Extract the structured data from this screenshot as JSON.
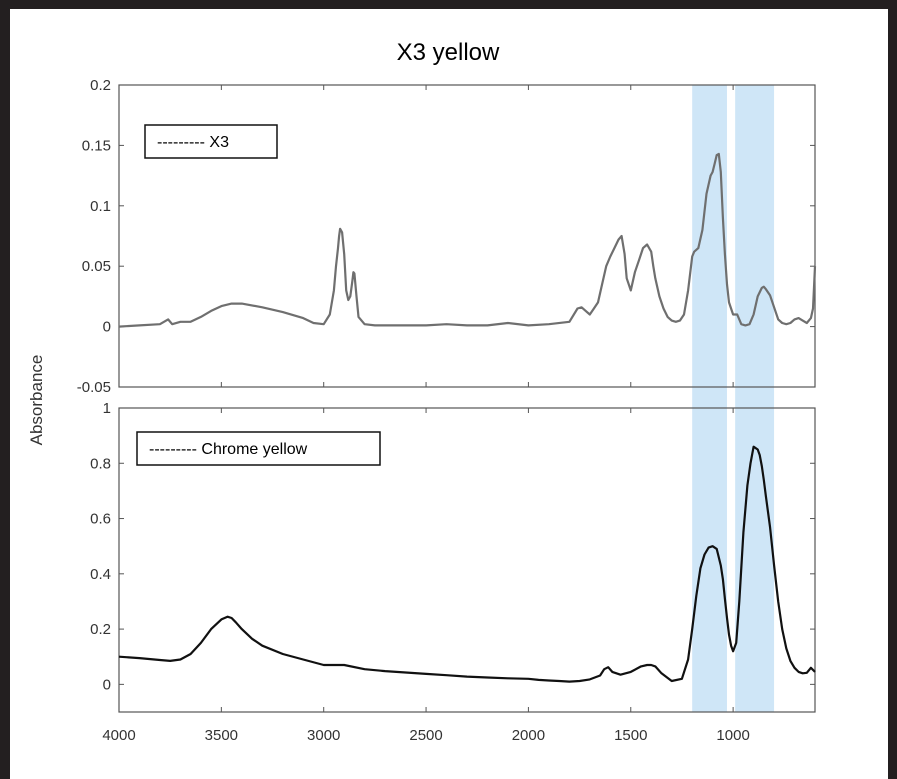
{
  "chart_data": {
    "title": "X3 yellow",
    "ylabel": "Absorbance",
    "xlabel": "",
    "x_ticks": [
      "4000",
      "3500",
      "3000",
      "2500",
      "2000",
      "1500",
      "1000"
    ],
    "xlim": [
      4000,
      600
    ],
    "highlight_bands": [
      [
        1200,
        1030
      ],
      [
        990,
        800
      ]
    ],
    "highlight_color": "#cfe6f7",
    "panels": [
      {
        "type": "line",
        "legend": "--------- X3",
        "legend_position": "top-left",
        "line_color": "#6f6f6f",
        "ylim": [
          -0.05,
          0.2
        ],
        "y_ticks": [
          "0.2",
          "0.15",
          "0.1",
          "0.05",
          "0",
          "-0.05"
        ],
        "series": [
          {
            "x": [
              4000,
              3900,
              3800,
              3760,
              3740,
              3700,
              3650,
              3600,
              3550,
              3500,
              3450,
              3400,
              3300,
              3200,
              3100,
              3050,
              3000,
              2970,
              2950,
              2940,
              2930,
              2925,
              2920,
              2910,
              2900,
              2890,
              2880,
              2870,
              2860,
              2855,
              2850,
              2840,
              2830,
              2800,
              2750,
              2700,
              2600,
              2500,
              2400,
              2300,
              2200,
              2100,
              2000,
              1900,
              1800,
              1760,
              1740,
              1720,
              1700,
              1680,
              1660,
              1640,
              1620,
              1600,
              1580,
              1560,
              1545,
              1530,
              1520,
              1500,
              1480,
              1460,
              1440,
              1420,
              1400,
              1390,
              1380,
              1360,
              1340,
              1320,
              1300,
              1280,
              1260,
              1240,
              1220,
              1200,
              1190,
              1170,
              1150,
              1130,
              1110,
              1100,
              1090,
              1080,
              1070,
              1060,
              1050,
              1040,
              1030,
              1020,
              1000,
              980,
              960,
              940,
              920,
              900,
              880,
              860,
              850,
              840,
              820,
              800,
              780,
              760,
              740,
              720,
              700,
              680,
              660,
              640,
              620,
              610,
              600
            ],
            "y": [
              0.0,
              0.001,
              0.002,
              0.006,
              0.002,
              0.004,
              0.004,
              0.008,
              0.013,
              0.017,
              0.019,
              0.019,
              0.016,
              0.012,
              0.007,
              0.003,
              0.002,
              0.01,
              0.03,
              0.05,
              0.065,
              0.075,
              0.081,
              0.078,
              0.06,
              0.03,
              0.022,
              0.025,
              0.038,
              0.045,
              0.044,
              0.025,
              0.008,
              0.002,
              0.001,
              0.001,
              0.001,
              0.001,
              0.002,
              0.001,
              0.001,
              0.003,
              0.001,
              0.002,
              0.004,
              0.015,
              0.016,
              0.013,
              0.01,
              0.015,
              0.02,
              0.035,
              0.05,
              0.058,
              0.065,
              0.072,
              0.075,
              0.06,
              0.04,
              0.03,
              0.045,
              0.055,
              0.065,
              0.068,
              0.062,
              0.05,
              0.04,
              0.025,
              0.015,
              0.008,
              0.005,
              0.004,
              0.005,
              0.01,
              0.03,
              0.058,
              0.062,
              0.065,
              0.08,
              0.11,
              0.125,
              0.128,
              0.135,
              0.142,
              0.143,
              0.128,
              0.09,
              0.06,
              0.035,
              0.02,
              0.01,
              0.01,
              0.002,
              0.001,
              0.002,
              0.01,
              0.025,
              0.032,
              0.033,
              0.031,
              0.026,
              0.016,
              0.006,
              0.003,
              0.002,
              0.003,
              0.006,
              0.007,
              0.005,
              0.003,
              0.007,
              0.015,
              0.05
            ]
          }
        ]
      },
      {
        "type": "line",
        "legend": "--------- Chrome yellow",
        "legend_position": "top-left",
        "line_color": "#111111",
        "ylim": [
          -0.1,
          1.0
        ],
        "y_ticks": [
          "1",
          "0.8",
          "0.6",
          "0.4",
          "0.2",
          "0"
        ],
        "series": [
          {
            "x": [
              4000,
              3900,
              3800,
              3750,
              3700,
              3650,
              3600,
              3550,
              3500,
              3470,
              3450,
              3430,
              3400,
              3350,
              3300,
              3200,
              3100,
              3000,
              2900,
              2800,
              2700,
              2600,
              2500,
              2400,
              2300,
              2200,
              2100,
              2000,
              1950,
              1900,
              1850,
              1800,
              1750,
              1700,
              1650,
              1630,
              1610,
              1590,
              1570,
              1550,
              1500,
              1450,
              1420,
              1400,
              1380,
              1350,
              1300,
              1250,
              1220,
              1200,
              1180,
              1160,
              1140,
              1120,
              1100,
              1080,
              1060,
              1050,
              1040,
              1030,
              1020,
              1010,
              1000,
              985,
              970,
              950,
              930,
              915,
              900,
              880,
              870,
              860,
              850,
              840,
              820,
              800,
              780,
              760,
              740,
              720,
              700,
              680,
              660,
              640,
              620,
              600
            ],
            "y": [
              0.1,
              0.095,
              0.088,
              0.085,
              0.09,
              0.11,
              0.15,
              0.2,
              0.235,
              0.245,
              0.24,
              0.225,
              0.2,
              0.165,
              0.14,
              0.11,
              0.09,
              0.07,
              0.07,
              0.055,
              0.048,
              0.043,
              0.038,
              0.033,
              0.028,
              0.025,
              0.022,
              0.02,
              0.016,
              0.014,
              0.012,
              0.01,
              0.012,
              0.018,
              0.032,
              0.055,
              0.062,
              0.045,
              0.04,
              0.035,
              0.045,
              0.065,
              0.07,
              0.07,
              0.065,
              0.04,
              0.012,
              0.02,
              0.09,
              0.2,
              0.32,
              0.42,
              0.47,
              0.495,
              0.5,
              0.49,
              0.43,
              0.38,
              0.31,
              0.24,
              0.18,
              0.14,
              0.12,
              0.15,
              0.3,
              0.55,
              0.72,
              0.8,
              0.86,
              0.85,
              0.83,
              0.79,
              0.74,
              0.68,
              0.57,
              0.43,
              0.3,
              0.2,
              0.13,
              0.085,
              0.06,
              0.045,
              0.04,
              0.042,
              0.06,
              0.045
            ]
          }
        ]
      }
    ]
  }
}
